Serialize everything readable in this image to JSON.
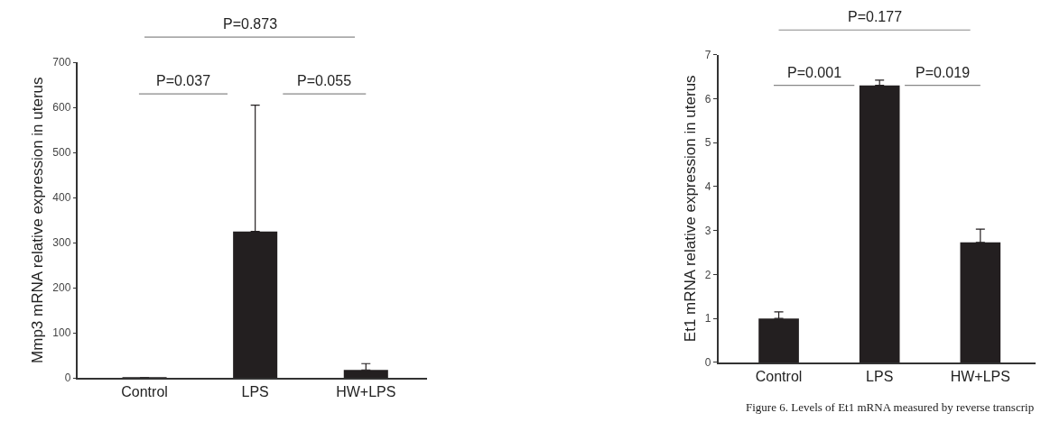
{
  "chart_data": [
    {
      "type": "bar",
      "ylabel": "Mmp3 mRNA relative expression in uterus",
      "categories": [
        "Control",
        "LPS",
        "HW+LPS"
      ],
      "values": [
        1,
        325,
        18
      ],
      "errors": [
        null,
        280,
        14
      ],
      "color": "#231f20",
      "ylim": [
        0,
        700
      ],
      "yticks": [
        0,
        100,
        200,
        300,
        400,
        500,
        600,
        700
      ],
      "grid": false,
      "legend": false,
      "annotations": [
        "P=0.873",
        "P=0.037",
        "P=0.055"
      ]
    },
    {
      "type": "bar",
      "ylabel": "Et1 mRNA relative expression in uterus",
      "categories": [
        "Control",
        "LPS",
        "HW+LPS"
      ],
      "values": [
        1.0,
        6.3,
        2.73
      ],
      "errors": [
        0.15,
        0.12,
        0.3
      ],
      "color": "#231f20",
      "ylim": [
        0,
        7
      ],
      "yticks": [
        0,
        1,
        2,
        3,
        4,
        5,
        6,
        7
      ],
      "grid": false,
      "legend": false,
      "annotations": [
        "P=0.177",
        "P=0.001",
        "P=0.019",
        "Figure 6. Levels of Et1 mRNA measured by reverse transcrip"
      ]
    }
  ]
}
